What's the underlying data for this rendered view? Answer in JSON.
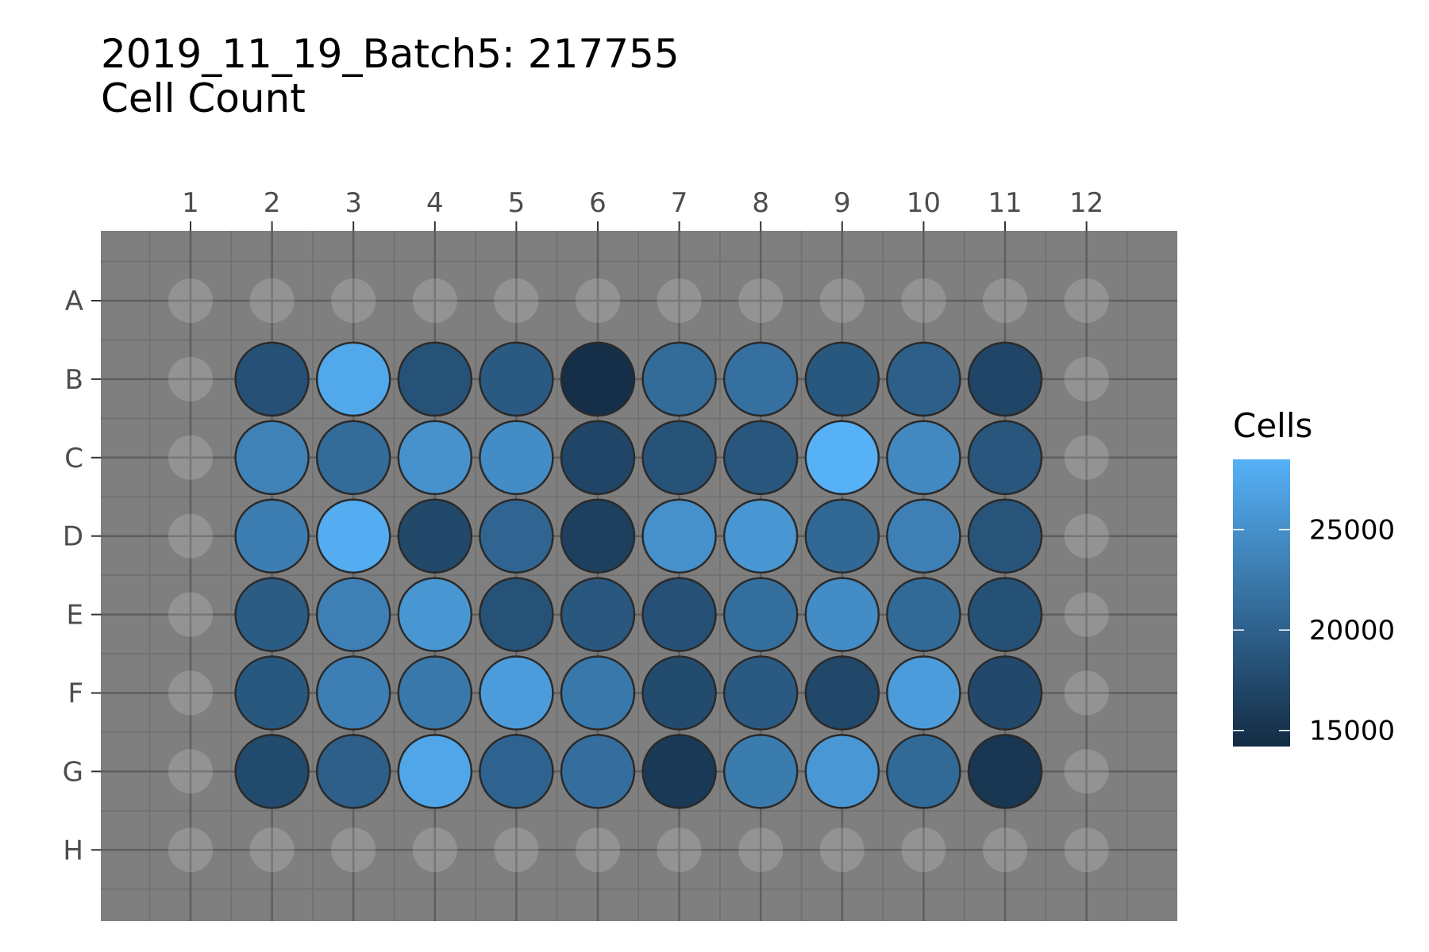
{
  "chart_data": {
    "type": "heatmap",
    "title": "2019_11_19_Batch5: 217755",
    "subtitle": "Cell Count",
    "columns": [
      "1",
      "2",
      "3",
      "4",
      "5",
      "6",
      "7",
      "8",
      "9",
      "10",
      "11",
      "12"
    ],
    "rows": [
      "A",
      "B",
      "C",
      "D",
      "E",
      "F",
      "G",
      "H"
    ],
    "legend": {
      "title": "Cells",
      "position": "right",
      "min": 14200,
      "max": 28500,
      "ticks": [
        15000,
        20000,
        25000
      ],
      "tick_labels": [
        "15000",
        "20000",
        "25000"
      ],
      "low_color": "#132B43",
      "high_color": "#56B1F7"
    },
    "grid": true,
    "empty_well_note": "outer wells (row A, row H, column 1, column 12) have no value",
    "values": [
      [
        null,
        null,
        null,
        null,
        null,
        null,
        null,
        null,
        null,
        null,
        null,
        null
      ],
      [
        null,
        18200,
        27500,
        18400,
        19200,
        14600,
        21000,
        21600,
        19000,
        19800,
        17000,
        null
      ],
      [
        null,
        23500,
        21000,
        25200,
        24500,
        17000,
        18500,
        18800,
        28500,
        24200,
        18800,
        null
      ],
      [
        null,
        23000,
        28000,
        17300,
        20400,
        16400,
        25000,
        25600,
        20700,
        23300,
        18600,
        null
      ],
      [
        null,
        19400,
        23300,
        25600,
        18400,
        18900,
        18200,
        21300,
        24500,
        20900,
        18300,
        null
      ],
      [
        null,
        19000,
        23200,
        22400,
        26300,
        22400,
        17600,
        19200,
        17200,
        26300,
        17400,
        null
      ],
      [
        null,
        17500,
        19700,
        27300,
        20200,
        21400,
        15700,
        22800,
        25800,
        20900,
        15400,
        null
      ],
      [
        null,
        null,
        null,
        null,
        null,
        null,
        null,
        null,
        null,
        null,
        null,
        null
      ]
    ]
  }
}
